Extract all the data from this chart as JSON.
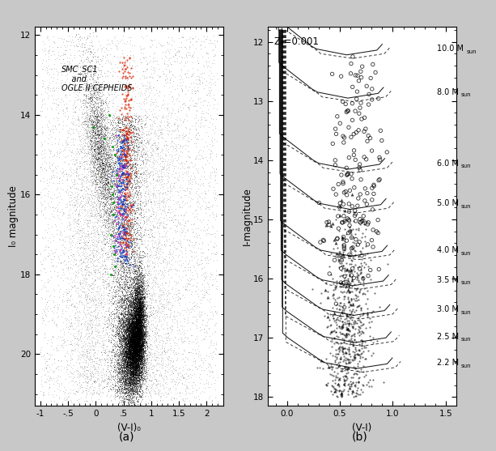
{
  "panel_a": {
    "title": "SMC_SC1\n    and\nOGLE II CEPHEIDS",
    "xlabel": "(V-I)₀",
    "ylabel": "I₀ magnitude",
    "xlim": [
      -1.1,
      2.3
    ],
    "ylim": [
      21.3,
      11.8
    ],
    "label_a": "(a)"
  },
  "panel_b": {
    "xlabel": "(V-I)",
    "ylabel": "I-magnitude",
    "xlim": [
      -0.18,
      1.6
    ],
    "ylim": [
      18.15,
      11.75
    ],
    "annotation": "Z₀=0.001",
    "masses": [
      "10.0",
      "8.0",
      "6.0",
      "5.0",
      "4.0",
      "3.5",
      "3.0",
      "2.5",
      "2.2"
    ],
    "mass_y": [
      12.12,
      12.85,
      14.05,
      14.73,
      15.52,
      16.02,
      16.52,
      16.98,
      17.42
    ],
    "label_b": "(b)"
  },
  "figure": {
    "bg_color": "#c8c8c8",
    "figsize": [
      6.13,
      5.57
    ],
    "dpi": 100
  }
}
